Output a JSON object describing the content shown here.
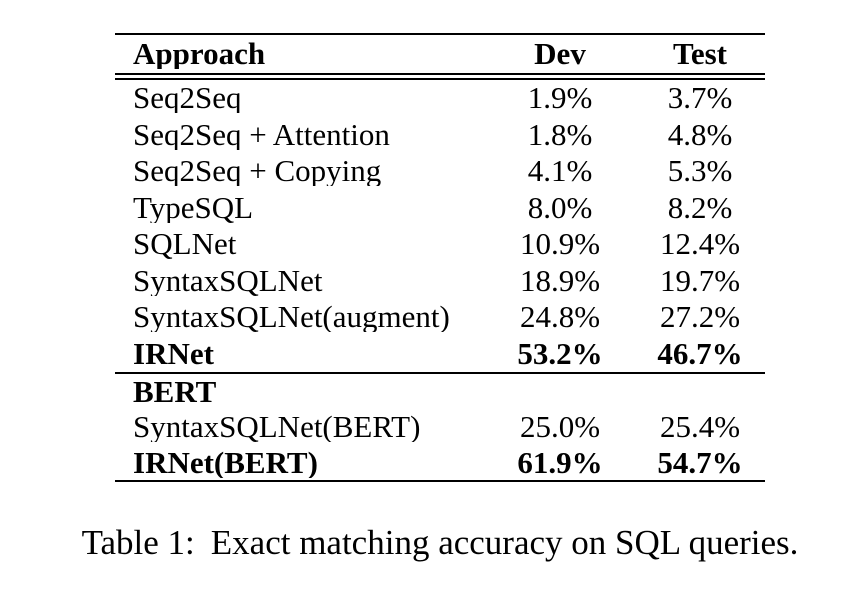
{
  "table": {
    "columns": [
      "Approach",
      "Dev",
      "Test"
    ],
    "rows": [
      {
        "approach": "Seq2Seq",
        "dev": "1.9%",
        "test": "3.7%"
      },
      {
        "approach": "Seq2Seq + Attention",
        "dev": "1.8%",
        "test": "4.8%"
      },
      {
        "approach": "Seq2Seq + Copying",
        "dev": "4.1%",
        "test": "5.3%"
      },
      {
        "approach": "TypeSQL",
        "dev": "8.0%",
        "test": "8.2%"
      },
      {
        "approach": "SQLNet",
        "dev": "10.9%",
        "test": "12.4%"
      },
      {
        "approach": "SyntaxSQLNet",
        "dev": "18.9%",
        "test": "19.7%"
      },
      {
        "approach": "SyntaxSQLNet(augment)",
        "dev": "24.8%",
        "test": "27.2%"
      },
      {
        "approach": "IRNet",
        "dev": "53.2%",
        "test": "46.7%"
      },
      {
        "approach": "BERT",
        "dev": "",
        "test": ""
      },
      {
        "approach": "SyntaxSQLNet(BERT)",
        "dev": "25.0%",
        "test": "25.4%"
      },
      {
        "approach": "IRNet(BERT)",
        "dev": "61.9%",
        "test": "54.7%"
      }
    ]
  },
  "caption": {
    "label": "Table 1:",
    "text": "Exact matching accuracy on SQL queries."
  },
  "colors": {
    "text": "#000000",
    "background": "#ffffff"
  }
}
